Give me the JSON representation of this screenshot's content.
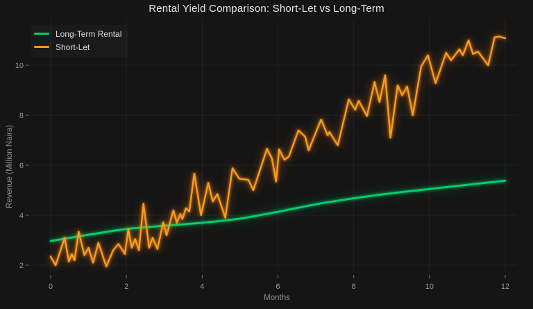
{
  "title": "Rental Yield Comparison: Short-Let vs Long-Term",
  "legend": [
    {
      "label": "Long-Term Rental",
      "color": "#00d06e"
    },
    {
      "label": "Short-Let",
      "color": "#f89b1c"
    }
  ],
  "axes": {
    "x": {
      "label": "Months",
      "ticks": [
        0,
        2,
        4,
        6,
        8,
        10,
        12
      ]
    },
    "y": {
      "label": "Revenue (Million Naira)",
      "ticks": [
        2,
        4,
        6,
        8,
        10
      ]
    }
  },
  "colors": {
    "background": "#151515",
    "grid": "#232323",
    "tick_text": "#9a9a9a",
    "axis_title_text": "#8f8f8f",
    "title_text": "#e9e9e9",
    "long_term_line": "#00d06e",
    "short_let_line": "#f89b1c"
  },
  "chart_data": {
    "type": "line",
    "title": "Rental Yield Comparison: Short-Let vs Long-Term",
    "xlabel": "Months",
    "ylabel": "Revenue (Million Naira)",
    "xlim": [
      -0.35,
      12.6
    ],
    "ylim": [
      1.45,
      11.8
    ],
    "grid": true,
    "legend_position": "top-left",
    "series": [
      {
        "name": "Long-Term Rental",
        "color": "#00d06e",
        "style": "smooth",
        "x": [
          0,
          1,
          2,
          3,
          4,
          5,
          6,
          7,
          8,
          9,
          10,
          11,
          12
        ],
        "values": [
          2.97,
          3.22,
          3.45,
          3.58,
          3.7,
          3.87,
          4.14,
          4.44,
          4.68,
          4.88,
          5.05,
          5.22,
          5.38
        ]
      },
      {
        "name": "Short-Let",
        "color": "#f89b1c",
        "style": "jagged",
        "x": [
          0.0,
          0.13,
          0.37,
          0.48,
          0.56,
          0.63,
          0.74,
          0.89,
          1.0,
          1.12,
          1.26,
          1.47,
          1.65,
          1.79,
          1.96,
          2.05,
          2.14,
          2.23,
          2.33,
          2.45,
          2.6,
          2.69,
          2.82,
          2.97,
          3.06,
          3.24,
          3.33,
          3.42,
          3.48,
          3.57,
          3.66,
          3.79,
          3.97,
          4.16,
          4.28,
          4.4,
          4.61,
          4.8,
          4.98,
          5.22,
          5.35,
          5.71,
          5.84,
          5.95,
          6.03,
          6.17,
          6.29,
          6.54,
          6.72,
          6.81,
          7.14,
          7.31,
          7.36,
          7.58,
          7.87,
          8.04,
          8.13,
          8.35,
          8.55,
          8.68,
          8.83,
          8.97,
          9.16,
          9.28,
          9.41,
          9.56,
          9.78,
          9.96,
          10.16,
          10.44,
          10.57,
          10.79,
          10.88,
          11.03,
          11.15,
          11.28,
          11.55,
          11.72,
          11.85,
          12.0
        ],
        "values": [
          2.35,
          2.0,
          3.1,
          2.15,
          2.45,
          2.2,
          3.35,
          2.4,
          2.7,
          2.1,
          2.9,
          1.95,
          2.6,
          2.85,
          2.45,
          3.45,
          2.7,
          3.05,
          2.6,
          4.47,
          2.7,
          3.1,
          2.65,
          3.72,
          3.2,
          4.2,
          3.7,
          4.05,
          3.85,
          4.28,
          4.15,
          5.67,
          4.0,
          5.3,
          4.55,
          4.85,
          3.9,
          5.88,
          5.46,
          5.42,
          5.0,
          6.66,
          6.27,
          5.35,
          6.64,
          6.22,
          6.35,
          7.4,
          7.14,
          6.6,
          7.83,
          7.2,
          7.33,
          6.8,
          8.64,
          8.22,
          8.58,
          7.97,
          9.33,
          8.53,
          9.6,
          7.1,
          9.2,
          8.8,
          9.15,
          8.0,
          9.95,
          10.4,
          9.28,
          10.5,
          10.2,
          10.64,
          10.4,
          11.0,
          10.45,
          10.55,
          10.0,
          11.12,
          11.15,
          11.08
        ]
      }
    ]
  }
}
